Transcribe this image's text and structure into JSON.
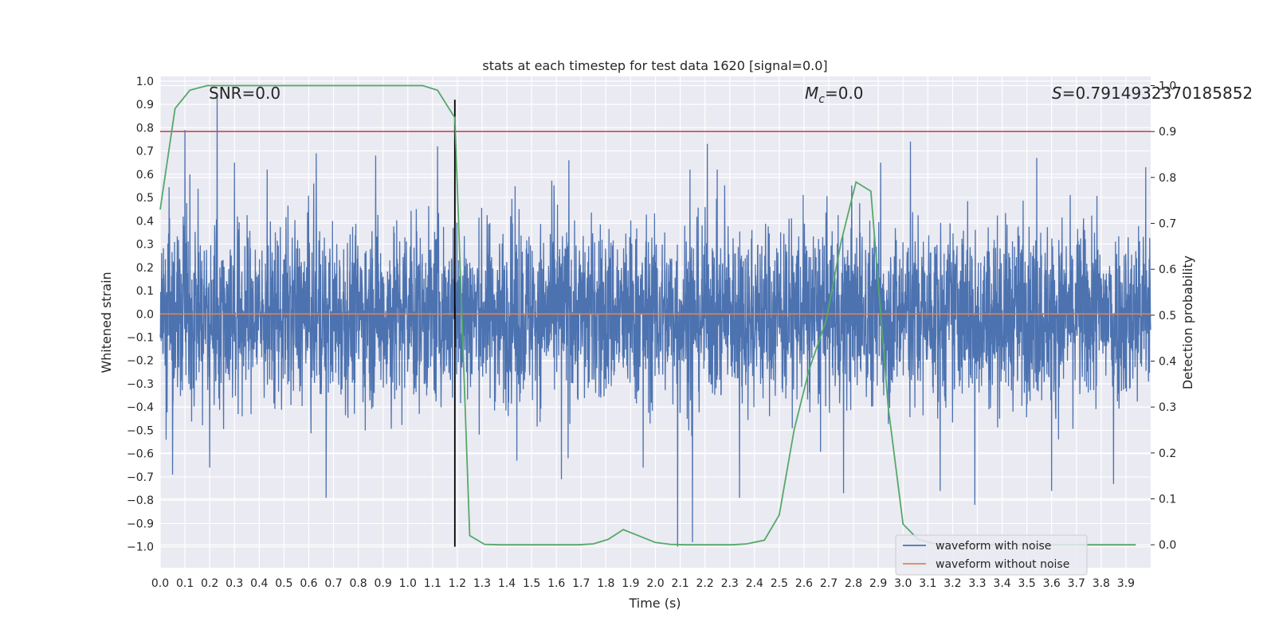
{
  "chart_data": {
    "type": "line",
    "title": "stats at each timestep for test data 1620 [signal=0.0]",
    "xlabel": "Time (s)",
    "ylabel": "Whitened strain",
    "y2label": "Detection probability",
    "xlim": [
      0.0,
      4.0
    ],
    "ylim": [
      -1.09,
      1.02
    ],
    "y2lim": [
      -0.05,
      1.02
    ],
    "xticks": [
      "0.0",
      "0.1",
      "0.2",
      "0.3",
      "0.4",
      "0.5",
      "0.6",
      "0.7",
      "0.8",
      "0.9",
      "1.0",
      "1.1",
      "1.2",
      "1.3",
      "1.4",
      "1.5",
      "1.6",
      "1.7",
      "1.8",
      "1.9",
      "2.0",
      "2.1",
      "2.2",
      "2.3",
      "2.4",
      "2.5",
      "2.6",
      "2.7",
      "2.8",
      "2.9",
      "3.0",
      "3.1",
      "3.2",
      "3.3",
      "3.4",
      "3.5",
      "3.6",
      "3.7",
      "3.8",
      "3.9"
    ],
    "yticks": [
      "1.0",
      "0.9",
      "0.8",
      "0.7",
      "0.6",
      "0.5",
      "0.4",
      "0.3",
      "0.2",
      "0.1",
      "0.0",
      "−0.1",
      "−0.2",
      "−0.3",
      "−0.4",
      "−0.5",
      "−0.6",
      "−0.7",
      "−0.8",
      "−0.9",
      "−1.0"
    ],
    "y2ticks": [
      "1.0",
      "0.9",
      "0.8",
      "0.7",
      "0.6",
      "0.5",
      "0.4",
      "0.3",
      "0.2",
      "0.1",
      "0.0"
    ],
    "grid": true,
    "legend_position": "lower-right",
    "annotations": {
      "snr": "SNR=0.0",
      "mc_symbol": "M",
      "mc_sub": "c",
      "mc_value": "=0.0",
      "s_symbol": "S",
      "s_value": "=0.7914932370185852"
    },
    "noise_envelope": {
      "typical_amplitude": 0.3,
      "peaks_positive": [
        [
          0.1,
          0.79
        ],
        [
          0.12,
          0.6
        ],
        [
          0.23,
          0.94
        ],
        [
          0.3,
          0.65
        ],
        [
          0.63,
          0.69
        ],
        [
          0.87,
          0.68
        ],
        [
          1.12,
          0.72
        ],
        [
          1.19,
          0.72
        ],
        [
          1.65,
          0.66
        ],
        [
          2.14,
          0.62
        ],
        [
          2.21,
          0.73
        ],
        [
          2.91,
          0.65
        ],
        [
          3.03,
          0.74
        ],
        [
          3.29,
          0.76
        ],
        [
          3.54,
          0.67
        ],
        [
          3.98,
          0.63
        ]
      ],
      "peaks_negative": [
        [
          0.05,
          -0.69
        ],
        [
          0.2,
          -0.66
        ],
        [
          0.67,
          -0.79
        ],
        [
          1.44,
          -0.63
        ],
        [
          1.62,
          -0.71
        ],
        [
          1.95,
          -0.66
        ],
        [
          2.09,
          -1.0
        ],
        [
          2.15,
          -0.98
        ],
        [
          2.34,
          -0.79
        ],
        [
          2.76,
          -0.77
        ],
        [
          3.15,
          -0.76
        ],
        [
          3.29,
          -0.82
        ],
        [
          3.6,
          -0.76
        ],
        [
          3.85,
          -0.73
        ]
      ]
    },
    "series": [
      {
        "name": "waveform with noise",
        "color": "#4c72b0",
        "axis": "left"
      },
      {
        "name": "waveform without noise",
        "color": "#dd8452",
        "axis": "left",
        "values_y": 0.0
      },
      {
        "name": "",
        "color": "#55a868",
        "axis": "right",
        "x": [
          0.0,
          0.06,
          0.12,
          0.19,
          0.25,
          0.31,
          0.37,
          0.44,
          0.5,
          0.56,
          0.62,
          0.69,
          0.75,
          0.81,
          0.87,
          0.94,
          1.0,
          1.06,
          1.12,
          1.19,
          1.25,
          1.31,
          1.37,
          1.44,
          1.5,
          1.56,
          1.62,
          1.69,
          1.75,
          1.81,
          1.87,
          1.94,
          2.0,
          2.06,
          2.12,
          2.19,
          2.25,
          2.31,
          2.37,
          2.44,
          2.5,
          2.56,
          2.62,
          2.69,
          2.75,
          2.81,
          2.87,
          2.94,
          3.0,
          3.06,
          3.12,
          3.19,
          3.25,
          3.31,
          3.37,
          3.44,
          3.5,
          3.56,
          3.62,
          3.69,
          3.75,
          3.81,
          3.87,
          3.94
        ],
        "y": [
          0.73,
          0.95,
          0.99,
          1.0,
          1.0,
          1.0,
          1.0,
          1.0,
          1.0,
          1.0,
          1.0,
          1.0,
          1.0,
          1.0,
          1.0,
          1.0,
          1.0,
          1.0,
          0.99,
          0.93,
          0.02,
          0.001,
          0.0,
          0.0,
          0.0,
          0.0,
          0.0,
          0.0,
          0.002,
          0.012,
          0.033,
          0.018,
          0.005,
          0.001,
          0.0,
          0.0,
          0.0,
          0.0,
          0.002,
          0.01,
          0.065,
          0.25,
          0.38,
          0.49,
          0.66,
          0.79,
          0.77,
          0.3,
          0.045,
          0.012,
          0.003,
          0.001,
          0.0,
          0.0,
          0.0,
          0.0,
          0.0,
          0.0,
          0.0,
          0.0,
          0.0,
          0.0,
          0.0,
          0.0
        ]
      }
    ],
    "threshold": {
      "axis": "right",
      "value": 0.9,
      "color": "#c44e52"
    },
    "marker": {
      "x": 1.19,
      "y_top": 0.92,
      "y_bottom": -1.0,
      "color": "#000000"
    }
  }
}
